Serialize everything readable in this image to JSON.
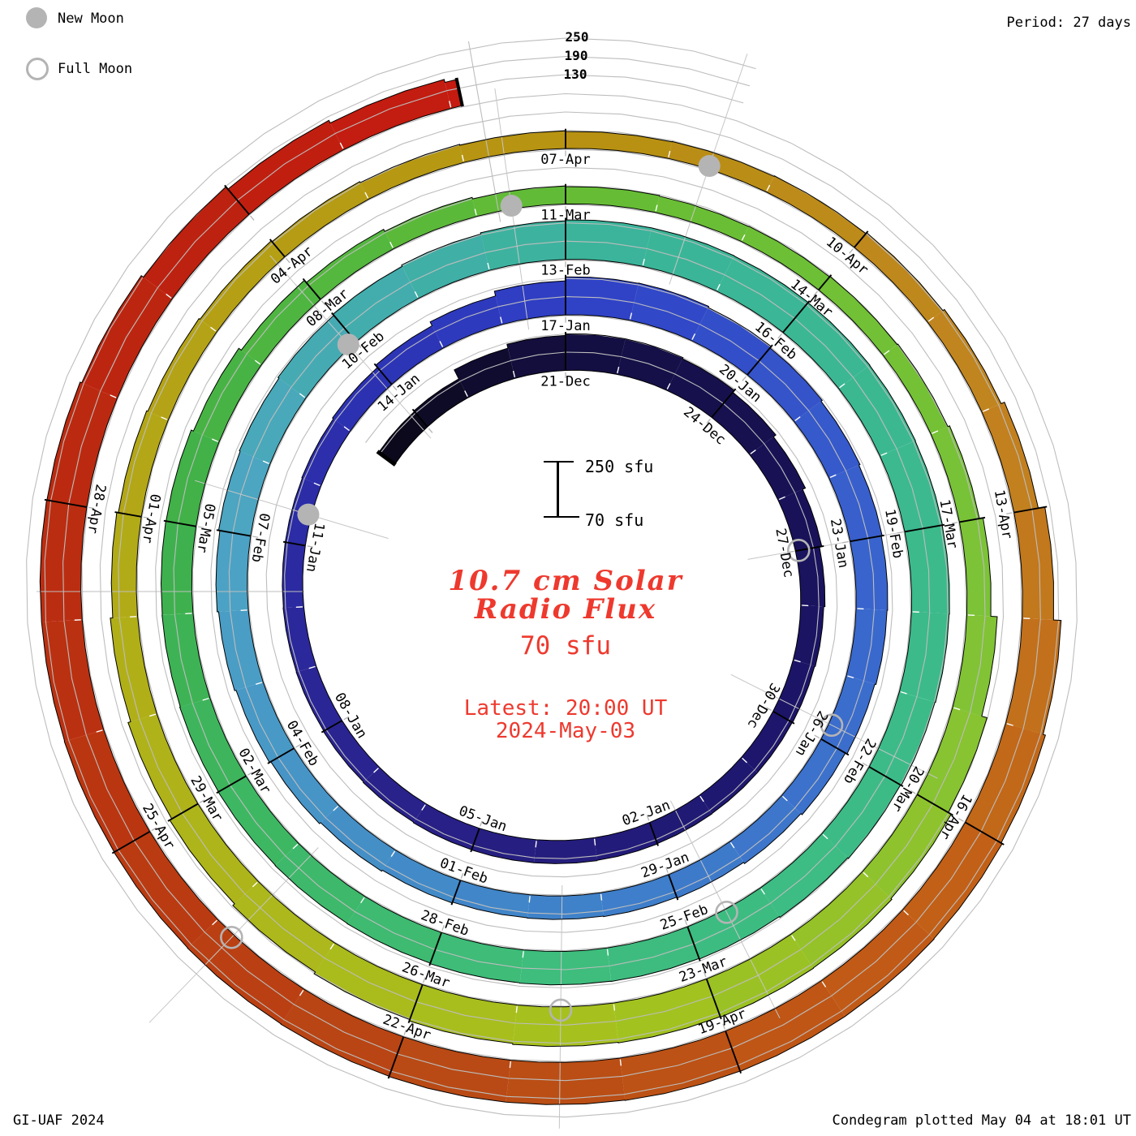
{
  "legend": {
    "new_moon_label": "New Moon",
    "full_moon_label": "Full Moon"
  },
  "top_right": {
    "period_label": "Period: 27 days"
  },
  "grid_value_labels": {
    "v250": "250",
    "v190": "190",
    "v130": "130"
  },
  "scale_bar": {
    "top_label": "250 sfu",
    "bottom_label": "70 sfu"
  },
  "center_text": {
    "title_line1": "10.7 cm Solar",
    "title_line2": "Radio Flux",
    "baseline_value": "70 sfu",
    "latest_line1": "Latest: 20:00 UT",
    "latest_line2": "2024-May-03"
  },
  "footer": {
    "left": "GI-UAF 2024",
    "right": "Condegram plotted May 04 at 18:01 UT"
  },
  "colors": {
    "accent_red": "#ee392e",
    "grid_gray": "#bdbdbd",
    "moon_gray": "#b4b4b4",
    "ink": "#000000",
    "background": "#ffffff"
  },
  "chart_data": {
    "type": "spiral_bar_condegram",
    "title": "10.7 cm Solar Radio Flux",
    "units": "sfu",
    "period_days": 27,
    "baseline_sfu": 70,
    "gridline_values_sfu": [
      130,
      190,
      250
    ],
    "angle_zero_date": "2023-12-21",
    "start_date": "2023-12-17",
    "end_date": "2024-05-03",
    "end_day_fraction": 0.1,
    "date_tick_interval_days": 3,
    "date_tick_labels": [
      "21-Dec",
      "24-Dec",
      "27-Dec",
      "30-Dec",
      "02-Jan",
      "05-Jan",
      "08-Jan",
      "11-Jan",
      "14-Jan",
      "17-Jan",
      "20-Jan",
      "23-Jan",
      "26-Jan",
      "29-Jan",
      "01-Feb",
      "04-Feb",
      "07-Feb",
      "10-Feb",
      "13-Feb",
      "16-Feb",
      "19-Feb",
      "22-Feb",
      "25-Feb",
      "28-Feb",
      "02-Mar",
      "05-Mar",
      "08-Mar",
      "11-Mar",
      "14-Mar",
      "17-Mar",
      "20-Mar",
      "23-Mar",
      "26-Mar",
      "29-Mar",
      "01-Apr",
      "04-Apr",
      "07-Apr",
      "10-Apr",
      "13-Apr",
      "16-Apr",
      "19-Apr",
      "22-Apr",
      "25-Apr",
      "28-Apr"
    ],
    "daily_flux_sfu": [
      136,
      139,
      172,
      185,
      190,
      190,
      186,
      178,
      168,
      158,
      150,
      146,
      144,
      143,
      143,
      144,
      145,
      146,
      146,
      145,
      143,
      141,
      139,
      138,
      137,
      137,
      139,
      143,
      152,
      166,
      182,
      195,
      196,
      192,
      186,
      181,
      177,
      174,
      172,
      168,
      162,
      157,
      152,
      149,
      147,
      146,
      149,
      153,
      158,
      163,
      168,
      173,
      177,
      180,
      184,
      188,
      193,
      197,
      200,
      200,
      199,
      198,
      197,
      196,
      195,
      194,
      192,
      189,
      186,
      183,
      181,
      180,
      179,
      177,
      176,
      175,
      174,
      172,
      171,
      170,
      162,
      152,
      142,
      134,
      129,
      127,
      125,
      126,
      128,
      131,
      137,
      149,
      170,
      188,
      199,
      203,
      204,
      202,
      200,
      197,
      192,
      185,
      177,
      169,
      160,
      152,
      147,
      143,
      139,
      135,
      131,
      128,
      126,
      127,
      129,
      133,
      139,
      151,
      173,
      198,
      206,
      210,
      211,
      211,
      210,
      209,
      209,
      208,
      207,
      206,
      205,
      204,
      204,
      203,
      197,
      188,
      178,
      168,
      158
    ],
    "moons": [
      {
        "date": "2023-12-27",
        "type": "full",
        "t": 6.0
      },
      {
        "date": "2024-01-11",
        "type": "new",
        "t": 21.5
      },
      {
        "date": "2024-01-25",
        "type": "full",
        "t": 35.75
      },
      {
        "date": "2024-02-09",
        "type": "new",
        "t": 50.9
      },
      {
        "date": "2024-02-24",
        "type": "full",
        "t": 65.5
      },
      {
        "date": "2024-03-10",
        "type": "new",
        "t": 80.4
      },
      {
        "date": "2024-03-25",
        "type": "full",
        "t": 94.55
      },
      {
        "date": "2024-04-08",
        "type": "new",
        "t": 109.4
      },
      {
        "date": "2024-04-23",
        "type": "full",
        "t": 124.8
      }
    ],
    "color_stops": [
      [
        -4,
        "#0a0816"
      ],
      [
        0,
        "#140f40"
      ],
      [
        8,
        "#1b1465"
      ],
      [
        16,
        "#292188"
      ],
      [
        23,
        "#2c2fae"
      ],
      [
        27,
        "#2f40c6"
      ],
      [
        34,
        "#3a67cd"
      ],
      [
        41,
        "#4084c9"
      ],
      [
        48,
        "#4da4c4"
      ],
      [
        54,
        "#3bb39c"
      ],
      [
        61,
        "#3cba8b"
      ],
      [
        68,
        "#3ebd7c"
      ],
      [
        75,
        "#3eb04a"
      ],
      [
        81,
        "#64bc35"
      ],
      [
        88,
        "#7ec337"
      ],
      [
        94,
        "#a5c21e"
      ],
      [
        101,
        "#b2ad18"
      ],
      [
        108,
        "#b79211"
      ],
      [
        113,
        "#c28420"
      ],
      [
        118,
        "#c25c16"
      ],
      [
        122,
        "#b94c15"
      ],
      [
        127,
        "#ba3311"
      ],
      [
        131,
        "#bc2410"
      ],
      [
        134,
        "#c41a10"
      ]
    ]
  }
}
